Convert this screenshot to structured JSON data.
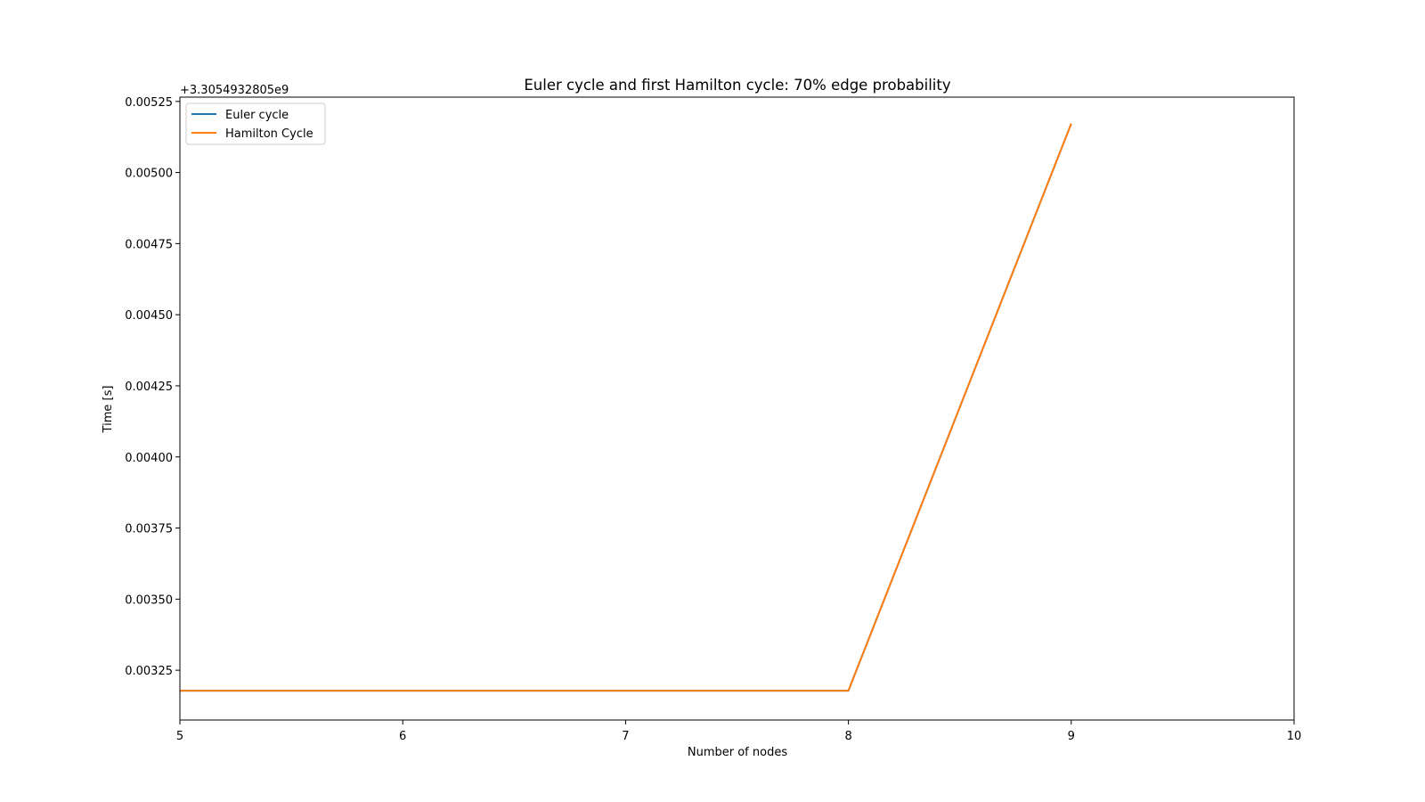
{
  "chart_data": {
    "type": "line",
    "title": "Euler cycle and first Hamilton cycle: 70% edge probability",
    "xlabel": "Number of nodes",
    "ylabel": "Time [s]",
    "offset_label": "+3.3054932805e9",
    "xlim": [
      5,
      10
    ],
    "ylim": [
      0.003075,
      0.005265
    ],
    "x_ticks": [
      5,
      6,
      7,
      8,
      9,
      10
    ],
    "x_tick_labels": [
      "5",
      "6",
      "7",
      "8",
      "9",
      "10"
    ],
    "y_ticks": [
      0.00325,
      0.0035,
      0.00375,
      0.004,
      0.00425,
      0.0045,
      0.00475,
      0.005,
      0.00525
    ],
    "y_tick_labels": [
      "0.00325",
      "0.00350",
      "0.00375",
      "0.00400",
      "0.00425",
      "0.00450",
      "0.00475",
      "0.00500",
      "0.00525"
    ],
    "grid": false,
    "legend_position": "top-left",
    "series": [
      {
        "name": "Euler cycle",
        "color": "#1f77b4",
        "x": [
          5,
          6,
          7,
          8,
          9
        ],
        "y": [
          0.003178,
          0.003178,
          0.003178,
          0.003178,
          0.005172
        ]
      },
      {
        "name": "Hamilton Cycle",
        "color": "#ff7f0e",
        "x": [
          5,
          6,
          7,
          8,
          9
        ],
        "y": [
          0.003178,
          0.003178,
          0.003178,
          0.003178,
          0.005172
        ]
      }
    ]
  }
}
